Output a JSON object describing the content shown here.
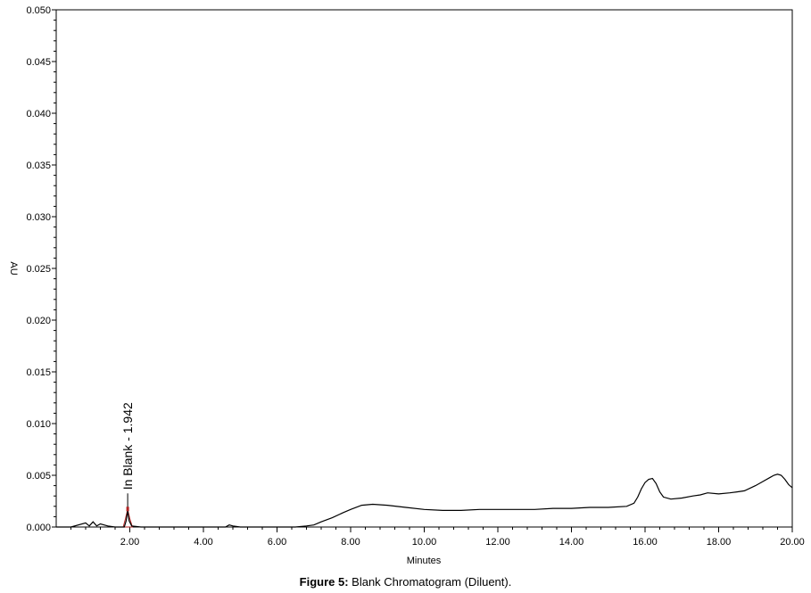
{
  "chart_data": {
    "type": "line",
    "ylabel": "AU",
    "xlabel": "Minutes",
    "xlim": [
      0.0,
      20.0
    ],
    "ylim": [
      0.0,
      0.05
    ],
    "x_ticks": [
      2.0,
      4.0,
      6.0,
      8.0,
      10.0,
      12.0,
      14.0,
      16.0,
      18.0,
      20.0
    ],
    "x_tick_labels": [
      "2.00",
      "4.00",
      "6.00",
      "8.00",
      "10.00",
      "12.00",
      "14.00",
      "16.00",
      "18.00",
      "20.00"
    ],
    "y_ticks": [
      0.0,
      0.005,
      0.01,
      0.015,
      0.02,
      0.025,
      0.03,
      0.035,
      0.04,
      0.045,
      0.05
    ],
    "y_tick_labels": [
      "0.000",
      "0.005",
      "0.010",
      "0.015",
      "0.020",
      "0.025",
      "0.030",
      "0.035",
      "0.040",
      "0.045",
      "0.050"
    ],
    "series": [
      {
        "color": "#000000",
        "x": [
          0.0,
          0.4,
          0.8,
          0.9,
          1.0,
          1.1,
          1.2,
          1.4,
          1.6,
          1.85,
          1.9,
          1.942,
          1.98,
          2.05,
          2.3,
          3.0,
          4.0,
          4.6,
          4.7,
          4.8,
          5.0,
          6.0,
          6.5,
          6.8,
          7.0,
          7.2,
          7.5,
          7.8,
          8.0,
          8.3,
          8.6,
          9.0,
          9.5,
          10.0,
          10.5,
          11.0,
          11.5,
          12.0,
          12.5,
          13.0,
          13.5,
          14.0,
          14.5,
          15.0,
          15.5,
          15.7,
          15.8,
          15.9,
          16.0,
          16.1,
          16.2,
          16.3,
          16.4,
          16.5,
          16.7,
          17.0,
          17.3,
          17.5,
          17.7,
          18.0,
          18.3,
          18.5,
          18.7,
          19.0,
          19.2,
          19.4,
          19.5,
          19.6,
          19.7,
          19.8,
          19.9,
          20.0
        ],
        "y": [
          0.0,
          0.0,
          0.0004,
          0.0001,
          0.0005,
          0.0001,
          0.0003,
          0.0001,
          0.0,
          0.0,
          0.0006,
          0.0016,
          0.0006,
          0.0001,
          0.0,
          0.0,
          0.0,
          0.0,
          0.0002,
          0.0001,
          0.0,
          0.0,
          0.0,
          0.0001,
          0.0002,
          0.0005,
          0.0009,
          0.0014,
          0.0017,
          0.0021,
          0.0022,
          0.0021,
          0.0019,
          0.0017,
          0.0016,
          0.0016,
          0.0017,
          0.0017,
          0.0017,
          0.0017,
          0.0018,
          0.0018,
          0.0019,
          0.0019,
          0.002,
          0.0023,
          0.0029,
          0.0037,
          0.0043,
          0.0046,
          0.0047,
          0.0042,
          0.0034,
          0.0029,
          0.0027,
          0.0028,
          0.003,
          0.0031,
          0.0033,
          0.0032,
          0.0033,
          0.0034,
          0.0035,
          0.004,
          0.0044,
          0.0048,
          0.005,
          0.0051,
          0.005,
          0.0046,
          0.0041,
          0.0038
        ]
      }
    ],
    "peak_fill": {
      "color": "#b22222",
      "x": [
        1.82,
        1.88,
        1.942,
        2.0,
        2.07
      ],
      "y": [
        0.0,
        0.0008,
        0.0017,
        0.0008,
        0.0
      ]
    },
    "annotations": [
      {
        "x": 1.942,
        "y": 0.0017,
        "text": "In Blank - 1.942"
      }
    ]
  },
  "caption": {
    "bold": "Figure 5:",
    "text": " Blank Chromatogram (Diluent)."
  }
}
